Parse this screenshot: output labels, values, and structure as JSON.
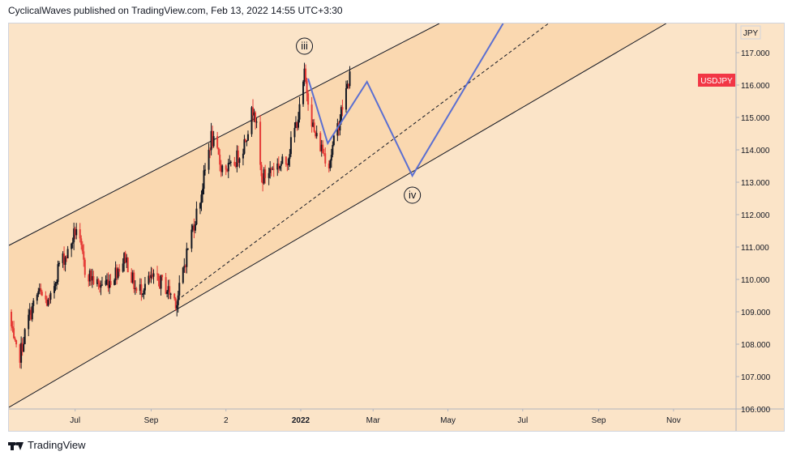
{
  "header": {
    "text": "CyclicalWaves published on TradingView.com, Feb 13, 2022 14:55 UTC+3:30"
  },
  "footer": {
    "brand": "TradingView"
  },
  "chart_data": {
    "type": "candlestick",
    "symbol": "USDJPY",
    "currency_label": "JPY",
    "last_price": 116.3,
    "price_badge_color": "#f23645",
    "x_tick_labels": [
      "Jul",
      "Sep",
      "2",
      "2022",
      "Mar",
      "May",
      "Jul",
      "Sep",
      "Nov"
    ],
    "x_tick_dates": [
      "2021-07-01",
      "2021-09-01",
      "2021-11-01",
      "2022-01-01",
      "2022-03-01",
      "2022-05-01",
      "2022-07-01",
      "2022-09-01",
      "2022-11-01"
    ],
    "y_ticks": [
      "106.000",
      "107.000",
      "108.000",
      "109.000",
      "110.000",
      "111.000",
      "112.000",
      "113.000",
      "114.000",
      "115.000",
      "116.000",
      "117.000"
    ],
    "ylim": [
      106,
      117.9
    ],
    "xlim": [
      "2021-05-08",
      "2022-12-22"
    ],
    "colors": {
      "background": "#fbe4c8",
      "channel_fill": "#fad8b0",
      "up": "#131722",
      "down": "#e53935",
      "projection": "#5b6fd1"
    },
    "price_key_points": [
      [
        "2021-05-08",
        109.0
      ],
      [
        "2021-05-12",
        108.0
      ],
      [
        "2021-05-16",
        107.5
      ],
      [
        "2021-05-24",
        108.8
      ],
      [
        "2021-06-01",
        109.6
      ],
      [
        "2021-06-10",
        109.2
      ],
      [
        "2021-06-18",
        110.5
      ],
      [
        "2021-06-25",
        110.8
      ],
      [
        "2021-07-02",
        111.6
      ],
      [
        "2021-07-09",
        110.3
      ],
      [
        "2021-07-20",
        109.8
      ],
      [
        "2021-07-30",
        110.0
      ],
      [
        "2021-08-11",
        110.7
      ],
      [
        "2021-08-20",
        109.6
      ],
      [
        "2021-09-01",
        110.0
      ],
      [
        "2021-09-10",
        109.9
      ],
      [
        "2021-09-22",
        109.3
      ],
      [
        "2021-10-01",
        111.0
      ],
      [
        "2021-10-11",
        112.5
      ],
      [
        "2021-10-20",
        114.4
      ],
      [
        "2021-10-28",
        113.5
      ],
      [
        "2021-11-05",
        113.4
      ],
      [
        "2021-11-15",
        114.1
      ],
      [
        "2021-11-24",
        115.4
      ],
      [
        "2021-11-30",
        113.1
      ],
      [
        "2021-12-10",
        113.5
      ],
      [
        "2021-12-20",
        113.6
      ],
      [
        "2021-12-31",
        115.2
      ],
      [
        "2022-01-04",
        116.3
      ],
      [
        "2022-01-12",
        114.5
      ],
      [
        "2022-01-24",
        113.6
      ],
      [
        "2022-02-02",
        115.0
      ],
      [
        "2022-02-10",
        116.3
      ]
    ],
    "channel": {
      "upper": [
        [
          "2021-05-08",
          111.05
        ],
        [
          "2022-04-24",
          117.9
        ]
      ],
      "middle": [
        [
          "2021-09-22",
          109.35
        ],
        [
          "2022-07-22",
          117.9
        ]
      ],
      "lower": [
        [
          "2021-05-08",
          106.05
        ],
        [
          "2022-10-26",
          117.9
        ]
      ]
    },
    "projection_path": [
      [
        "2022-01-07",
        116.2
      ],
      [
        "2022-01-23",
        114.2
      ],
      [
        "2022-02-24",
        116.1
      ],
      [
        "2022-04-02",
        113.2
      ],
      [
        "2022-06-15",
        117.9
      ]
    ],
    "wave_labels": [
      {
        "text": "iii",
        "date": "2022-01-04",
        "price": 117.2
      },
      {
        "text": "iv",
        "date": "2022-04-02",
        "price": 112.6
      }
    ]
  }
}
